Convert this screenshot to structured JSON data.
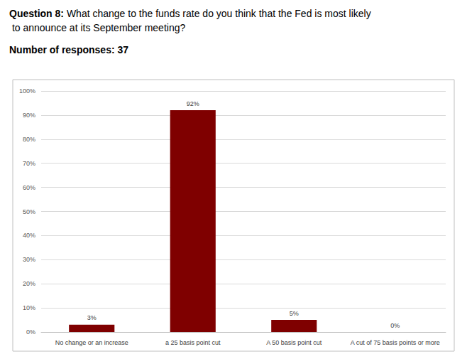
{
  "chart_data": {
    "type": "bar",
    "title": "Question 8: What change to the funds rate do you think that the Fed is most likely to announce at its September meeting?",
    "subtitle": "Number of responses: 37",
    "categories": [
      "No change or an increase",
      "a 25 basis point cut",
      "A 50 basis point cut",
      "A cut of 75 basis points or more"
    ],
    "values": [
      3,
      92,
      5,
      0
    ],
    "value_labels": [
      "3%",
      "92%",
      "5%",
      "0%"
    ],
    "color": "#7f0000",
    "ylim": [
      0,
      100
    ],
    "yticks": [
      {
        "value": 0,
        "label": "0%"
      },
      {
        "value": 10,
        "label": "10%"
      },
      {
        "value": 20,
        "label": "20%"
      },
      {
        "value": 30,
        "label": "30%"
      },
      {
        "value": 40,
        "label": "40%"
      },
      {
        "value": 50,
        "label": "50%"
      },
      {
        "value": 60,
        "label": "60%"
      },
      {
        "value": 70,
        "label": "70%"
      },
      {
        "value": 80,
        "label": "80%"
      },
      {
        "value": 90,
        "label": "90%"
      },
      {
        "value": 100,
        "label": "100%"
      }
    ],
    "grid": true,
    "data_labels": true
  }
}
